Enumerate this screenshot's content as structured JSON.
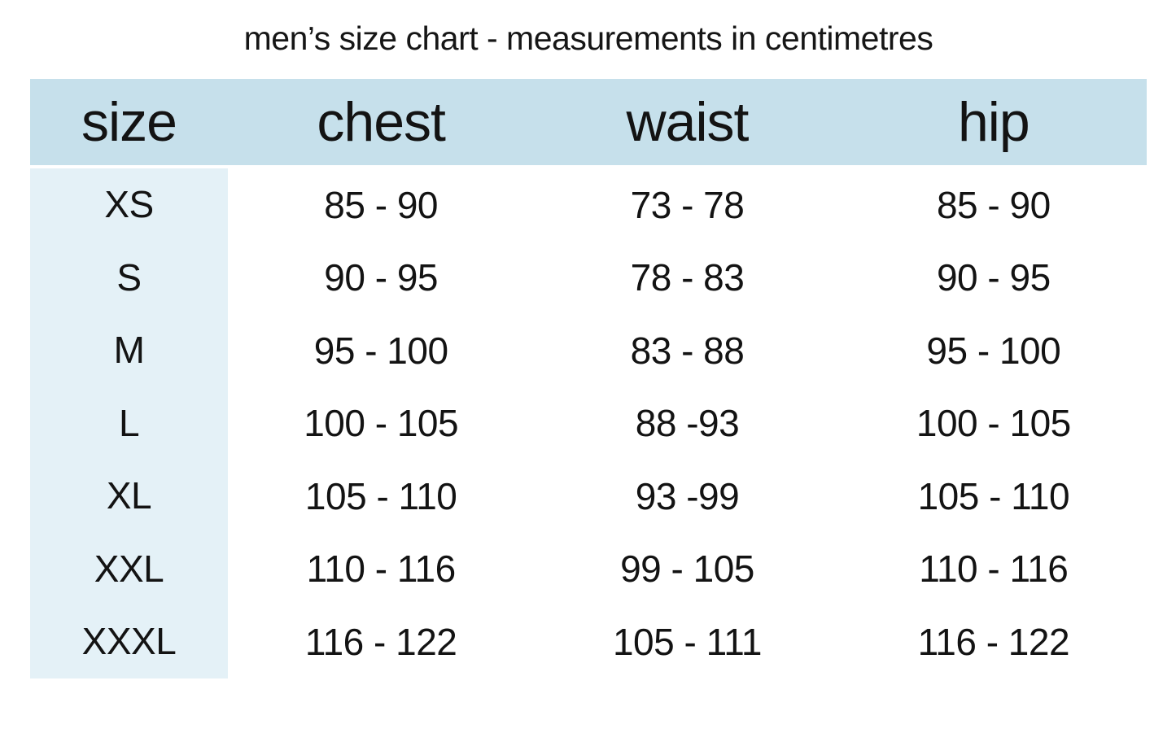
{
  "page_title": "men’s size chart - measurements in centimetres",
  "colors": {
    "header_bg": "#c6e0eb",
    "size_column_bg": "#e4f1f7",
    "text": "#131313",
    "page_bg": "#ffffff"
  },
  "chart_data": {
    "type": "table",
    "title": "men’s size chart - measurements in centimetres",
    "columns": [
      "size",
      "chest",
      "waist",
      "hip"
    ],
    "rows": [
      [
        "XS",
        "85 - 90",
        "73 - 78",
        "85 - 90"
      ],
      [
        "S",
        "90 - 95",
        "78 - 83",
        "90 - 95"
      ],
      [
        "M",
        "95 - 100",
        "83 - 88",
        "95 - 100"
      ],
      [
        "L",
        "100 - 105",
        "88 -93",
        "100 - 105"
      ],
      [
        "XL",
        "105 - 110",
        "93 -99",
        "105 - 110"
      ],
      [
        "XXL",
        "110 - 116",
        "99 - 105",
        "110 - 116"
      ],
      [
        "XXXL",
        "116 - 122",
        "105 - 111",
        "116 - 122"
      ]
    ],
    "units": "centimetres",
    "layout": {
      "grid": "off",
      "header_position": "top",
      "size_column_highlighted": true
    }
  }
}
